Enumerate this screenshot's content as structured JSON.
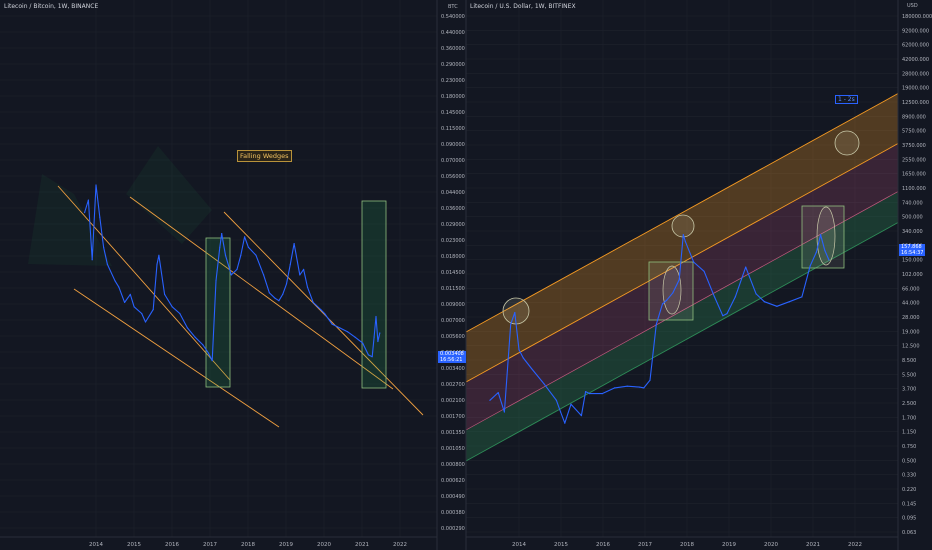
{
  "colors": {
    "background": "#131722",
    "grid": "#1e222d",
    "series": "#2962ff",
    "trendline": "#f0a040",
    "zone_green": "#26a65b",
    "band_orange": "#f59a23",
    "band_pink": "#c2587e",
    "band_green": "#2e8b57",
    "highlight_box": "#8fbf7f",
    "circle": "#c8c8a8"
  },
  "left_panel": {
    "title": "Litecoin / Bitcoin, 1W, BINANCE",
    "unit": "BTC",
    "annotation": "Falling Wedges",
    "last_price": "0.003408",
    "last_price_countdown": "16:56:21",
    "y_ticks": [
      "0.540000",
      "0.440000",
      "0.360000",
      "0.290000",
      "0.230000",
      "0.180000",
      "0.145000",
      "0.115000",
      "0.090000",
      "0.070000",
      "0.056000",
      "0.044000",
      "0.036000",
      "0.029000",
      "0.023000",
      "0.018000",
      "0.014500",
      "0.011500",
      "0.009000",
      "0.007000",
      "0.005600",
      "0.004400",
      "0.003400",
      "0.002700",
      "0.002100",
      "0.001700",
      "0.001350",
      "0.001050",
      "0.000800",
      "0.000620",
      "0.000490",
      "0.000380",
      "0.000290"
    ],
    "x_ticks": [
      "2014",
      "2015",
      "2016",
      "2017",
      "2018",
      "2019",
      "2020",
      "2021",
      "2022"
    ]
  },
  "right_panel": {
    "title": "Litecoin / U.S. Dollar, 1W, BITFINEX",
    "unit": "USD",
    "annotation": "1 - 2s",
    "last_price": "157.868",
    "last_price_countdown": "16:54:37",
    "y_ticks": [
      "180000.000",
      "92000.000",
      "62000.000",
      "42000.000",
      "28000.000",
      "19000.000",
      "12500.000",
      "8900.000",
      "5750.000",
      "3750.000",
      "2550.000",
      "1650.000",
      "1100.000",
      "740.000",
      "500.000",
      "340.000",
      "230.000",
      "150.000",
      "102.000",
      "66.000",
      "44.000",
      "28.000",
      "19.000",
      "12.500",
      "8.500",
      "5.500",
      "3.700",
      "2.500",
      "1.700",
      "1.150",
      "0.750",
      "0.500",
      "0.330",
      "0.220",
      "0.145",
      "0.095",
      "0.063"
    ],
    "x_ticks": [
      "2014",
      "2015",
      "2016",
      "2017",
      "2018",
      "2019",
      "2020",
      "2021",
      "2022"
    ]
  },
  "chart_data": [
    {
      "type": "line",
      "title": "Litecoin / Bitcoin, 1W, BINANCE",
      "ylabel": "BTC",
      "y_scale": "log",
      "ylim": [
        0.00029,
        0.54
      ],
      "x": [
        2013.7,
        2013.8,
        2013.9,
        2014.0,
        2014.1,
        2014.2,
        2014.3,
        2014.5,
        2014.6,
        2014.75,
        2014.9,
        2015.0,
        2015.2,
        2015.3,
        2015.5,
        2015.6,
        2015.65,
        2015.8,
        2016.0,
        2016.2,
        2016.4,
        2016.6,
        2016.8,
        2016.95,
        2017.05,
        2017.15,
        2017.25,
        2017.3,
        2017.4,
        2017.55,
        2017.7,
        2017.8,
        2017.9,
        2018.0,
        2018.2,
        2018.4,
        2018.55,
        2018.7,
        2018.8,
        2018.9,
        2019.0,
        2019.1,
        2019.2,
        2019.35,
        2019.45,
        2019.55,
        2019.7,
        2019.9,
        2020.0,
        2020.2,
        2020.4,
        2020.6,
        2020.8,
        2021.0,
        2021.15,
        2021.25,
        2021.3,
        2021.35,
        2021.4,
        2021.45
      ],
      "values": [
        0.03,
        0.036,
        0.015,
        0.045,
        0.028,
        0.018,
        0.014,
        0.011,
        0.01,
        0.008,
        0.009,
        0.0075,
        0.0068,
        0.006,
        0.0072,
        0.014,
        0.016,
        0.009,
        0.0075,
        0.0068,
        0.0055,
        0.0048,
        0.0043,
        0.0038,
        0.0034,
        0.011,
        0.018,
        0.022,
        0.016,
        0.012,
        0.013,
        0.016,
        0.021,
        0.018,
        0.016,
        0.012,
        0.0092,
        0.0085,
        0.0082,
        0.009,
        0.0105,
        0.014,
        0.019,
        0.012,
        0.013,
        0.01,
        0.008,
        0.0072,
        0.0068,
        0.0058,
        0.0055,
        0.0052,
        0.0048,
        0.0044,
        0.0037,
        0.0036,
        0.0048,
        0.0065,
        0.0045,
        0.0051
      ]
    },
    {
      "type": "line",
      "title": "Litecoin / U.S. Dollar, 1W, BITFINEX",
      "ylabel": "USD",
      "y_scale": "log",
      "ylim": [
        0.063,
        180000
      ],
      "x": [
        2013.3,
        2013.5,
        2013.65,
        2013.8,
        2013.9,
        2014.0,
        2014.1,
        2014.3,
        2014.6,
        2014.9,
        2015.0,
        2015.1,
        2015.25,
        2015.5,
        2015.6,
        2015.7,
        2016.0,
        2016.3,
        2016.6,
        2016.9,
        2017.0,
        2017.15,
        2017.3,
        2017.45,
        2017.55,
        2017.7,
        2017.85,
        2017.95,
        2018.0,
        2018.2,
        2018.45,
        2018.7,
        2018.9,
        2019.0,
        2019.2,
        2019.45,
        2019.7,
        2019.9,
        2020.2,
        2020.5,
        2020.8,
        2021.0,
        2021.15,
        2021.25,
        2021.35,
        2021.45
      ],
      "values": [
        2.8,
        3.5,
        2.0,
        25,
        35,
        12,
        9.5,
        7.0,
        4.5,
        2.8,
        2.0,
        1.45,
        2.5,
        1.8,
        3.6,
        3.4,
        3.4,
        4.0,
        4.2,
        4.1,
        4.0,
        5.0,
        25,
        45,
        50,
        62,
        90,
        330,
        270,
        150,
        115,
        55,
        32,
        34,
        55,
        130,
        60,
        48,
        42,
        48,
        55,
        135,
        200,
        330,
        210,
        160
      ]
    }
  ]
}
